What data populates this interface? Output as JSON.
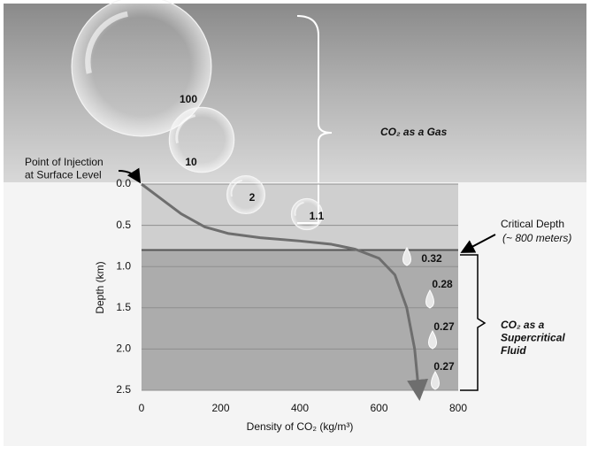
{
  "chart_data": {
    "type": "line",
    "x_label": "Density of CO₂ (kg/m³)",
    "y_label": "Depth (km)",
    "xlim": [
      0,
      800
    ],
    "xticks": [
      0,
      200,
      400,
      600,
      800
    ],
    "ylim": [
      0,
      2.5
    ],
    "yticks": [
      {
        "value": 0,
        "label": "0.0"
      },
      0.5,
      {
        "value": 1,
        "label": "1.0"
      },
      1.5,
      {
        "value": 2,
        "label": "2.0"
      },
      2.5
    ],
    "grid": true,
    "x": [
      0,
      50,
      100,
      160,
      220,
      300,
      400,
      480,
      540,
      600,
      640,
      670,
      690,
      700
    ],
    "series": [
      {
        "color": "#6e6e6e",
        "values": [
          0,
          0.18,
          0.36,
          0.52,
          0.6,
          0.65,
          0.69,
          0.73,
          0.79,
          0.9,
          1.1,
          1.5,
          2.0,
          2.5
        ]
      }
    ],
    "critical_depth": 0.8,
    "bubbles": {
      "values": [
        100,
        10,
        2,
        1.1
      ],
      "value_labels": [
        "100",
        "10",
        "2",
        "1.1"
      ]
    },
    "droplets": {
      "values": [
        0.32,
        0.28,
        0.27,
        0.27
      ]
    },
    "annotations": {
      "injection": "Point of Injection\nat Surface Level",
      "gas": "CO₂ as a Gas",
      "critical": "Critical Depth",
      "critical_note": "(~ 800 meters)",
      "supercritical": "CO₂ as a\nSupercritical\nFluid"
    }
  }
}
